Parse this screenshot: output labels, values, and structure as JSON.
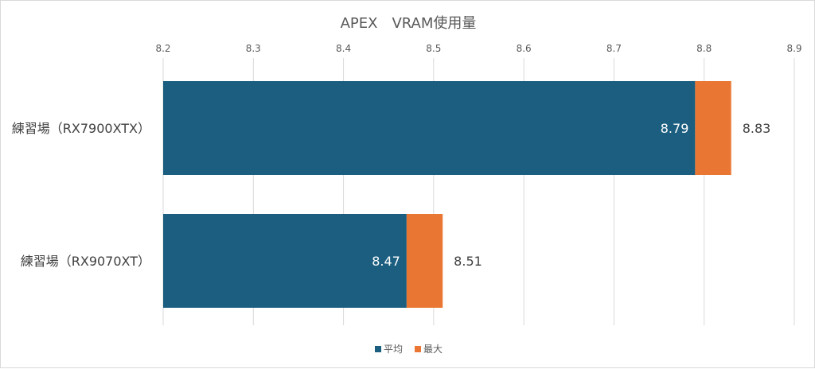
{
  "chart_data": {
    "type": "bar",
    "orientation": "horizontal",
    "title": "APEX　VRAM使用量",
    "categories": [
      "練習場（RX7900XTX）",
      "練習場（RX9070XT）"
    ],
    "series": [
      {
        "name": "平均",
        "values": [
          8.79,
          8.47
        ],
        "color": "#1b5e80"
      },
      {
        "name": "最大",
        "values": [
          8.83,
          8.51
        ],
        "color": "#e97632"
      }
    ],
    "xlim": [
      8.2,
      8.9
    ],
    "x_ticks": [
      "8.2",
      "8.3",
      "8.4",
      "8.5",
      "8.6",
      "8.7",
      "8.8",
      "8.9"
    ],
    "data_labels": [
      {
        "avg": "8.79",
        "max": "8.83"
      },
      {
        "avg": "8.47",
        "max": "8.51"
      }
    ],
    "xaxis_position": "top",
    "grid": true,
    "legend": "bottom",
    "xlabel": "",
    "ylabel": ""
  }
}
